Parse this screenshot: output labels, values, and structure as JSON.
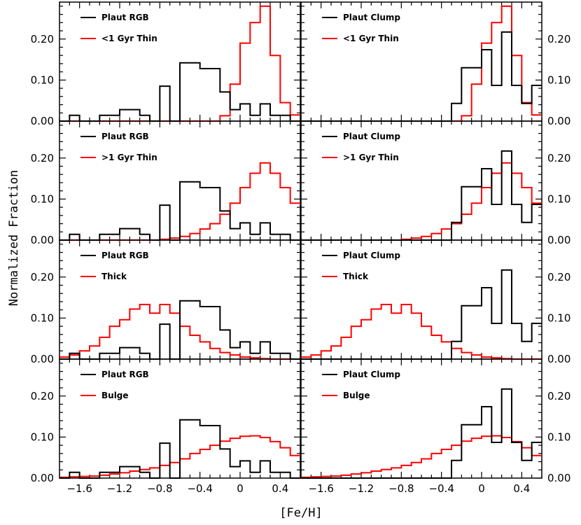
{
  "chart_data": {
    "type": "histogram-grid",
    "xlabel": "[Fe/H]",
    "ylabel": "Normalized Fraction",
    "xlim": [
      -1.8,
      0.6
    ],
    "ylim": [
      0.0,
      0.29
    ],
    "bin_edges": [
      -1.8,
      -1.7,
      -1.6,
      -1.5,
      -1.4,
      -1.3,
      -1.2,
      -1.1,
      -1.0,
      -0.9,
      -0.8,
      -0.7,
      -0.6,
      -0.5,
      -0.4,
      -0.3,
      -0.2,
      -0.1,
      0.0,
      0.1,
      0.2,
      0.3,
      0.4,
      0.5,
      0.6
    ],
    "x_ticks": [
      {
        "value": -1.6,
        "label": "−1.6"
      },
      {
        "value": -1.2,
        "label": "−1.2"
      },
      {
        "value": -0.8,
        "label": "−0.8"
      },
      {
        "value": -0.4,
        "label": "−0.4"
      },
      {
        "value": 0.0,
        "label": "0"
      },
      {
        "value": 0.4,
        "label": "0.4"
      }
    ],
    "y_ticks": [
      {
        "value": 0.0,
        "label": "0.00"
      },
      {
        "value": 0.1,
        "label": "0.10"
      },
      {
        "value": 0.2,
        "label": "0.20"
      }
    ],
    "colors": {
      "plaut": "#000000",
      "model": "#ff0000"
    },
    "panels": [
      {
        "id": "r1-rgb",
        "row": 0,
        "col": 0,
        "legend": [
          "Plaut RGB",
          "<1 Gyr Thin"
        ],
        "plaut": [
          0,
          0.014,
          0,
          0,
          0.014,
          0.014,
          0.028,
          0.028,
          0.014,
          0,
          0.085,
          0,
          0.142,
          0.142,
          0.128,
          0.128,
          0.071,
          0.028,
          0.042,
          0.014,
          0.042,
          0.014,
          0.014,
          0
        ],
        "model": [
          0,
          0,
          0,
          0,
          0,
          0,
          0,
          0,
          0,
          0,
          0,
          0,
          0,
          0,
          0,
          0,
          0.013,
          0.09,
          0.19,
          0.24,
          0.28,
          0.16,
          0.045,
          0.015
        ]
      },
      {
        "id": "r1-clump",
        "row": 0,
        "col": 1,
        "legend": [
          "Plaut Clump",
          "<1 Gyr Thin"
        ],
        "plaut": [
          0,
          0,
          0,
          0,
          0,
          0,
          0,
          0,
          0,
          0,
          0,
          0,
          0,
          0,
          0,
          0.043,
          0.13,
          0.13,
          0.174,
          0.087,
          0.217,
          0.087,
          0.043,
          0.087
        ],
        "model": [
          0,
          0,
          0,
          0,
          0,
          0,
          0,
          0,
          0,
          0,
          0,
          0,
          0,
          0,
          0,
          0,
          0.013,
          0.09,
          0.19,
          0.24,
          0.28,
          0.16,
          0.045,
          0.015
        ]
      },
      {
        "id": "r2-rgb",
        "row": 1,
        "col": 0,
        "legend": [
          "Plaut RGB",
          ">1 Gyr Thin"
        ],
        "plaut": [
          0,
          0.014,
          0,
          0,
          0.014,
          0.014,
          0.028,
          0.028,
          0.014,
          0,
          0.085,
          0,
          0.142,
          0.142,
          0.128,
          0.128,
          0.071,
          0.028,
          0.042,
          0.014,
          0.042,
          0.014,
          0.014,
          0
        ],
        "model": [
          0,
          0,
          0,
          0,
          0,
          0,
          0,
          0,
          0,
          0,
          0.002,
          0.005,
          0.009,
          0.016,
          0.027,
          0.04,
          0.063,
          0.09,
          0.128,
          0.163,
          0.188,
          0.163,
          0.128,
          0.09
        ]
      },
      {
        "id": "r2-clump",
        "row": 1,
        "col": 1,
        "legend": [
          "Plaut Clump",
          ">1 Gyr Thin"
        ],
        "plaut": [
          0,
          0,
          0,
          0,
          0,
          0,
          0,
          0,
          0,
          0,
          0,
          0,
          0,
          0,
          0,
          0.043,
          0.13,
          0.13,
          0.174,
          0.087,
          0.217,
          0.087,
          0.043,
          0.087
        ],
        "model": [
          0,
          0,
          0,
          0,
          0,
          0,
          0,
          0,
          0,
          0,
          0.002,
          0.005,
          0.009,
          0.016,
          0.027,
          0.04,
          0.063,
          0.09,
          0.128,
          0.163,
          0.188,
          0.163,
          0.128,
          0.09
        ]
      },
      {
        "id": "r3-rgb",
        "row": 2,
        "col": 0,
        "legend": [
          "Plaut RGB",
          "Thick"
        ],
        "plaut": [
          0,
          0.014,
          0,
          0,
          0.014,
          0.014,
          0.028,
          0.028,
          0.014,
          0,
          0.085,
          0,
          0.142,
          0.142,
          0.128,
          0.128,
          0.071,
          0.028,
          0.042,
          0.014,
          0.042,
          0.014,
          0.014,
          0
        ],
        "model": [
          0.005,
          0.01,
          0.02,
          0.032,
          0.053,
          0.08,
          0.096,
          0.122,
          0.133,
          0.112,
          0.133,
          0.112,
          0.08,
          0.058,
          0.042,
          0.026,
          0.016,
          0.01,
          0.005,
          0.003,
          0.001,
          0,
          0,
          0
        ]
      },
      {
        "id": "r3-clump",
        "row": 2,
        "col": 1,
        "legend": [
          "Plaut Clump",
          "Thick"
        ],
        "plaut": [
          0,
          0,
          0,
          0,
          0,
          0,
          0,
          0,
          0,
          0,
          0,
          0,
          0,
          0,
          0,
          0.043,
          0.13,
          0.13,
          0.174,
          0.087,
          0.217,
          0.087,
          0.043,
          0.087
        ],
        "model": [
          0.005,
          0.01,
          0.02,
          0.032,
          0.053,
          0.08,
          0.096,
          0.122,
          0.133,
          0.112,
          0.133,
          0.112,
          0.08,
          0.058,
          0.042,
          0.026,
          0.016,
          0.01,
          0.005,
          0.003,
          0.001,
          0,
          0,
          0
        ]
      },
      {
        "id": "r4-rgb",
        "row": 3,
        "col": 0,
        "legend": [
          "Plaut RGB",
          "Bulge"
        ],
        "plaut": [
          0,
          0.014,
          0,
          0,
          0.014,
          0.014,
          0.028,
          0.028,
          0.014,
          0,
          0.085,
          0,
          0.142,
          0.142,
          0.128,
          0.128,
          0.071,
          0.028,
          0.042,
          0.014,
          0.042,
          0.014,
          0.014,
          0
        ],
        "model": [
          0.002,
          0.003,
          0.004,
          0.005,
          0.007,
          0.01,
          0.013,
          0.017,
          0.021,
          0.025,
          0.031,
          0.038,
          0.047,
          0.06,
          0.07,
          0.08,
          0.09,
          0.097,
          0.102,
          0.103,
          0.099,
          0.089,
          0.074,
          0.055
        ]
      },
      {
        "id": "r4-clump",
        "row": 3,
        "col": 1,
        "legend": [
          "Plaut Clump",
          "Bulge"
        ],
        "plaut": [
          0,
          0,
          0,
          0,
          0,
          0,
          0,
          0,
          0,
          0,
          0,
          0,
          0,
          0,
          0,
          0.043,
          0.13,
          0.13,
          0.174,
          0.087,
          0.217,
          0.087,
          0.043,
          0.087
        ],
        "model": [
          0.002,
          0.003,
          0.004,
          0.005,
          0.007,
          0.01,
          0.013,
          0.017,
          0.021,
          0.025,
          0.031,
          0.038,
          0.047,
          0.06,
          0.07,
          0.08,
          0.09,
          0.097,
          0.102,
          0.103,
          0.099,
          0.089,
          0.074,
          0.055
        ]
      }
    ]
  }
}
